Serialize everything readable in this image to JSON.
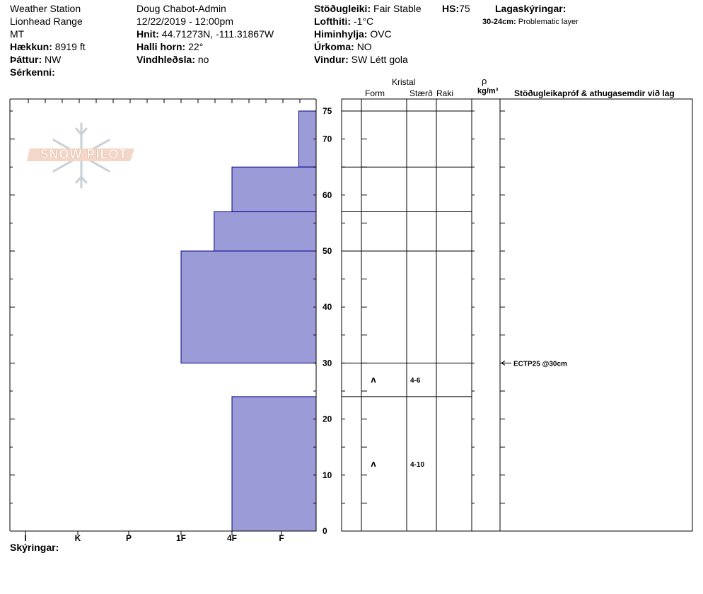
{
  "header": {
    "station": "Weather Station",
    "range": "Lionhead Range",
    "state": "MT",
    "elevation_label": "Hækkun:",
    "elevation": "8919 ft",
    "aspect_label": "Þáttur:",
    "aspect": "NW",
    "features_label": "Sérkenni:",
    "observer": "Doug Chabot-Admin",
    "datetime": "12/22/2019 - 12:00pm",
    "coords_label": "Hnit:",
    "coords": "44.71273N, -111.31867W",
    "slope_label": "Halli horn:",
    "slope": "22°",
    "wind_loading_label": "Vindhleðsla:",
    "wind_loading": "no",
    "stability_label": "Stöðugleiki:",
    "stability": "Fair Stable",
    "hs_label": "HS:",
    "hs": "75",
    "air_temp_label": "Lofthiti:",
    "air_temp": "-1°C",
    "sky_label": "Himinhylja:",
    "sky": "OVC",
    "precip_label": "Úrkoma:",
    "precip": "NO",
    "wind_label": "Vindur:",
    "wind": "SW Létt gola",
    "layer_notes_label": "Lagaskýringar:",
    "layer_note_range": "30-24cm:",
    "layer_note_text": "Problematic layer"
  },
  "columns": {
    "crystal": "Kristal",
    "form": "Form",
    "size": "Stærð",
    "moisture": "Raki",
    "rho": "ρ",
    "density_unit": "kg/m³",
    "comments": "Stöðugleikapróf & athugasemdir við lag"
  },
  "footer": {
    "notes_label": "Skýringar:"
  },
  "logo": {
    "text": "SNOW PILOT"
  },
  "colors": {
    "layer_fill": "#9b9bd7",
    "layer_stroke": "#00008b",
    "problem_line": "#c00000"
  },
  "chart_data": {
    "type": "snow-profile",
    "hardness_scale": [
      "I",
      "K",
      "P",
      "1F",
      "4F",
      "F"
    ],
    "depth_ticks": [
      0,
      10,
      20,
      30,
      40,
      50,
      60,
      70,
      75
    ],
    "depth_range_cm": [
      0,
      75
    ],
    "layers": [
      {
        "top": 75,
        "bottom": 65,
        "hardness_index": 5.35
      },
      {
        "top": 65,
        "bottom": 57,
        "hardness_index": 4.0
      },
      {
        "top": 57,
        "bottom": 50,
        "hardness_index": 3.65
      },
      {
        "top": 50,
        "bottom": 30,
        "hardness_index": 3.0
      },
      {
        "top": 30,
        "bottom": 24,
        "hardness_index": 5.7
      },
      {
        "top": 24,
        "bottom": 0,
        "hardness_index": 4.0
      }
    ],
    "problem_layer_depth": 30,
    "crystal_rows": [
      {
        "depth": 27,
        "form": "ʌ",
        "size": "4-6"
      },
      {
        "depth": 12,
        "form": "ʌ",
        "size": "4-10"
      }
    ],
    "tests": [
      {
        "depth": 30,
        "label": "ECTP25 @30cm"
      }
    ]
  }
}
